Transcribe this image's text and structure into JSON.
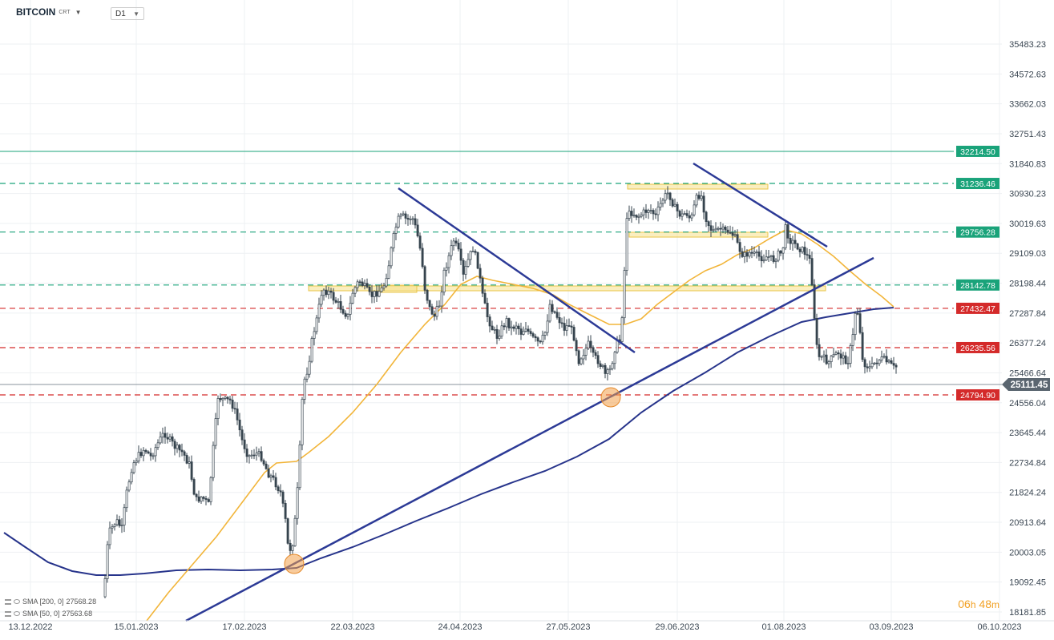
{
  "header": {
    "symbol": "BITCOIN",
    "symbol_sub": "CRT",
    "timeframe": "D1"
  },
  "timer": {
    "hours": "06",
    "h_unit": "h",
    "minutes": "48",
    "m_unit": "m"
  },
  "indicators": [
    {
      "label": "SMA [200, 0]",
      "value": "27568.28",
      "color": "#27348b"
    },
    {
      "label": "SMA [50, 0]",
      "value": "27563.68",
      "color": "#f2b53a"
    }
  ],
  "chart_data": {
    "type": "candlestick",
    "title": "",
    "y_ticks": [
      "35483.23",
      "34572.63",
      "33662.03",
      "32751.43",
      "31840.83",
      "30930.23",
      "30019.63",
      "29109.03",
      "28198.44",
      "27287.84",
      "26377.24",
      "25466.64",
      "24556.04",
      "23645.44",
      "22734.84",
      "21824.24",
      "20913.64",
      "20003.05",
      "19092.45",
      "18181.85"
    ],
    "x_ticks": [
      "13.12.2022",
      "15.01.2023",
      "17.02.2023",
      "22.03.2023",
      "24.04.2023",
      "27.05.2023",
      "29.06.2023",
      "01.08.2023",
      "03.09.2023",
      "06.10.2023"
    ],
    "current_price": "25111.45",
    "levels": [
      {
        "label": "32214.50",
        "value": 32214.5,
        "color": "#1aa37a",
        "style": "solid"
      },
      {
        "label": "31236.46",
        "value": 31236.46,
        "color": "#1aa37a",
        "style": "dashed"
      },
      {
        "label": "29756.28",
        "value": 29756.28,
        "color": "#1aa37a",
        "style": "dashed"
      },
      {
        "label": "28142.78",
        "value": 28142.78,
        "color": "#1aa37a",
        "style": "dashed"
      },
      {
        "label": "27432.47",
        "value": 27432.47,
        "color": "#d42a2a",
        "style": "dashed"
      },
      {
        "label": "26235.56",
        "value": 26235.56,
        "color": "#d42a2a",
        "style": "dashed"
      },
      {
        "label": "24794.90",
        "value": 24794.9,
        "color": "#d42a2a",
        "style": "dashed"
      }
    ],
    "candle_color": "#37444f",
    "trendline_color": "#2c3a96",
    "zone_color": "#f6e08a",
    "marker_color": "#f3a04a"
  }
}
